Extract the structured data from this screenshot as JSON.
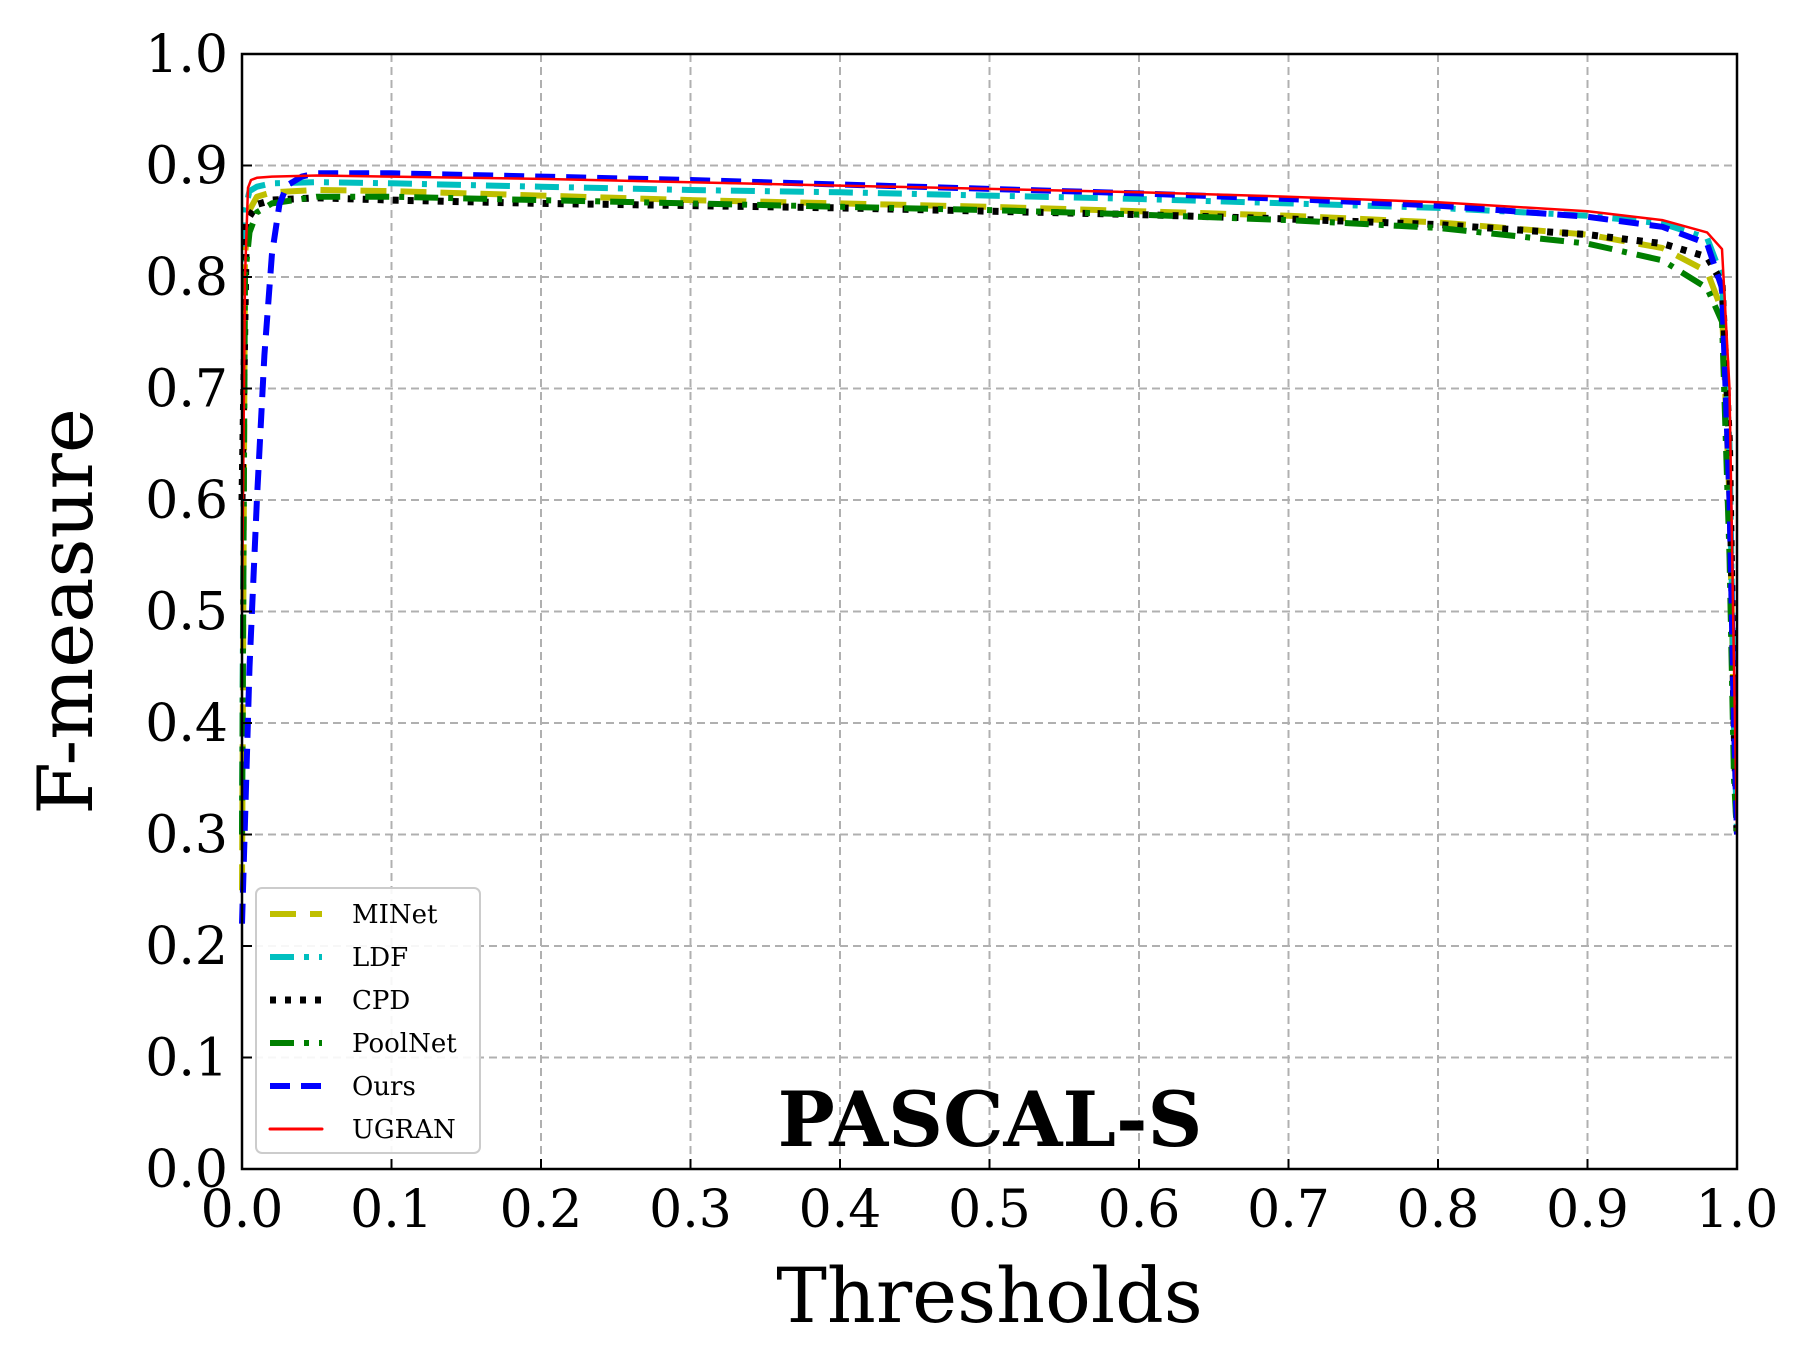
{
  "chart_data": {
    "type": "line",
    "annotation": "PASCAL-S",
    "xlabel": "Thresholds",
    "ylabel": "F-measure",
    "xlim": [
      0.0,
      1.0
    ],
    "ylim": [
      0.0,
      1.0
    ],
    "x_ticks": [
      "0.0",
      "0.1",
      "0.2",
      "0.3",
      "0.4",
      "0.5",
      "0.6",
      "0.7",
      "0.8",
      "0.9",
      "1.0"
    ],
    "y_ticks": [
      "0.0",
      "0.1",
      "0.2",
      "0.3",
      "0.4",
      "0.5",
      "0.6",
      "0.7",
      "0.8",
      "0.9",
      "1.0"
    ],
    "grid": true,
    "legend_position": "lower-left",
    "series": [
      {
        "name": "MINet",
        "color": "#bfbf00",
        "style": "long-dash",
        "x": [
          0.0,
          0.002,
          0.005,
          0.01,
          0.02,
          0.05,
          0.1,
          0.2,
          0.3,
          0.4,
          0.5,
          0.6,
          0.7,
          0.8,
          0.9,
          0.95,
          0.98,
          0.99,
          0.995,
          0.998,
          1.0
        ],
        "y": [
          0.25,
          0.82,
          0.86,
          0.872,
          0.876,
          0.878,
          0.877,
          0.873,
          0.869,
          0.866,
          0.863,
          0.859,
          0.855,
          0.849,
          0.838,
          0.826,
          0.805,
          0.77,
          0.6,
          0.4,
          0.3
        ]
      },
      {
        "name": "LDF",
        "color": "#00bfbf",
        "style": "dash-dot",
        "x": [
          0.0,
          0.002,
          0.005,
          0.01,
          0.02,
          0.05,
          0.1,
          0.2,
          0.3,
          0.4,
          0.5,
          0.6,
          0.7,
          0.8,
          0.9,
          0.95,
          0.98,
          0.99,
          0.995,
          0.998,
          1.0
        ],
        "y": [
          0.3,
          0.86,
          0.877,
          0.881,
          0.884,
          0.885,
          0.884,
          0.881,
          0.878,
          0.876,
          0.873,
          0.87,
          0.866,
          0.862,
          0.855,
          0.848,
          0.835,
          0.8,
          0.65,
          0.4,
          0.3
        ]
      },
      {
        "name": "CPD",
        "color": "#000000",
        "style": "dotted",
        "x": [
          0.0,
          0.003,
          0.01,
          0.02,
          0.05,
          0.1,
          0.2,
          0.3,
          0.4,
          0.5,
          0.6,
          0.7,
          0.8,
          0.9,
          0.95,
          0.98,
          0.99,
          0.995,
          0.998,
          1.0
        ],
        "y": [
          0.6,
          0.85,
          0.865,
          0.869,
          0.871,
          0.869,
          0.866,
          0.864,
          0.862,
          0.859,
          0.856,
          0.852,
          0.847,
          0.838,
          0.83,
          0.818,
          0.795,
          0.65,
          0.4,
          0.3
        ]
      },
      {
        "name": "PoolNet",
        "color": "#007f00",
        "style": "dash-dot",
        "x": [
          0.0,
          0.002,
          0.005,
          0.01,
          0.02,
          0.05,
          0.1,
          0.2,
          0.3,
          0.4,
          0.5,
          0.6,
          0.7,
          0.8,
          0.9,
          0.95,
          0.98,
          0.99,
          0.995,
          0.998,
          1.0
        ],
        "y": [
          0.3,
          0.8,
          0.84,
          0.858,
          0.866,
          0.872,
          0.872,
          0.869,
          0.866,
          0.863,
          0.86,
          0.856,
          0.851,
          0.844,
          0.83,
          0.815,
          0.79,
          0.76,
          0.55,
          0.35,
          0.3
        ]
      },
      {
        "name": "Ours",
        "color": "#0000ff",
        "style": "dashed",
        "x": [
          0.0,
          0.005,
          0.01,
          0.015,
          0.02,
          0.025,
          0.03,
          0.04,
          0.05,
          0.1,
          0.2,
          0.3,
          0.4,
          0.5,
          0.6,
          0.7,
          0.8,
          0.9,
          0.95,
          0.98,
          0.99,
          0.995,
          0.998,
          1.0
        ],
        "y": [
          0.22,
          0.45,
          0.6,
          0.73,
          0.82,
          0.865,
          0.882,
          0.89,
          0.893,
          0.893,
          0.89,
          0.887,
          0.883,
          0.879,
          0.875,
          0.87,
          0.864,
          0.854,
          0.845,
          0.83,
          0.79,
          0.6,
          0.4,
          0.3
        ]
      },
      {
        "name": "UGRAN",
        "color": "#ff0000",
        "style": "solid",
        "x": [
          0.0,
          0.002,
          0.004,
          0.006,
          0.01,
          0.02,
          0.05,
          0.1,
          0.2,
          0.3,
          0.4,
          0.5,
          0.6,
          0.7,
          0.8,
          0.9,
          0.95,
          0.98,
          0.99,
          0.995,
          0.998,
          1.0
        ],
        "y": [
          0.5,
          0.8,
          0.88,
          0.887,
          0.889,
          0.89,
          0.891,
          0.89,
          0.888,
          0.885,
          0.882,
          0.879,
          0.876,
          0.872,
          0.867,
          0.859,
          0.851,
          0.84,
          0.825,
          0.7,
          0.45,
          0.3
        ]
      }
    ]
  }
}
